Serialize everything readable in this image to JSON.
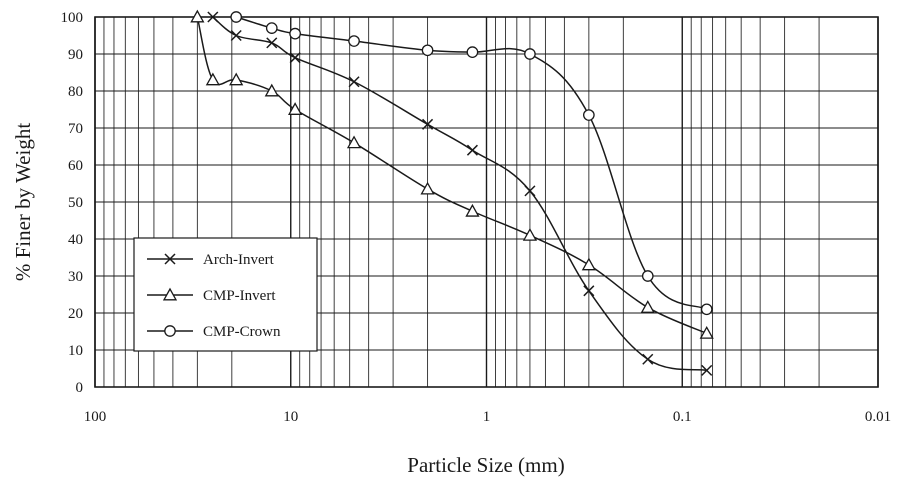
{
  "chart_data": {
    "type": "line",
    "title": "",
    "xlabel": "Particle Size (mm)",
    "ylabel": "% Finer by Weight",
    "x_scale": "log",
    "x_reversed": true,
    "xlim": [
      100,
      0.01
    ],
    "ylim": [
      0,
      100
    ],
    "x_ticks": [
      100,
      10,
      1,
      0.1,
      0.01
    ],
    "x_tick_labels": [
      "100",
      "10",
      "1",
      "0.1",
      "0.01"
    ],
    "y_ticks": [
      0,
      10,
      20,
      30,
      40,
      50,
      60,
      70,
      80,
      90,
      100
    ],
    "y_tick_labels": [
      "0",
      "10",
      "20",
      "30",
      "40",
      "50",
      "60",
      "70",
      "80",
      "90",
      "100"
    ],
    "grid": true,
    "legend_position": "lower-left",
    "series": [
      {
        "name": "Arch-Invert",
        "marker": "x",
        "x": [
          25,
          19,
          12.5,
          9.5,
          4.75,
          2,
          1.18,
          0.6,
          0.3,
          0.15,
          0.075
        ],
        "y": [
          100,
          95,
          93,
          89,
          82.5,
          71,
          64,
          53,
          26,
          7.5,
          4.5
        ]
      },
      {
        "name": "CMP-Invert",
        "marker": "triangle",
        "x": [
          30,
          25,
          19,
          12.5,
          9.5,
          4.75,
          2,
          1.18,
          0.6,
          0.3,
          0.15,
          0.075
        ],
        "y": [
          100,
          83,
          83,
          80,
          75,
          66,
          53.5,
          47.5,
          41,
          33,
          21.5,
          14.5
        ]
      },
      {
        "name": "CMP-Crown",
        "marker": "circle",
        "x": [
          19,
          12.5,
          9.5,
          4.75,
          2,
          1.18,
          0.6,
          0.3,
          0.15,
          0.075
        ],
        "y": [
          100,
          97,
          95.5,
          93.5,
          91,
          90.5,
          90,
          73.5,
          30,
          21
        ]
      }
    ]
  }
}
